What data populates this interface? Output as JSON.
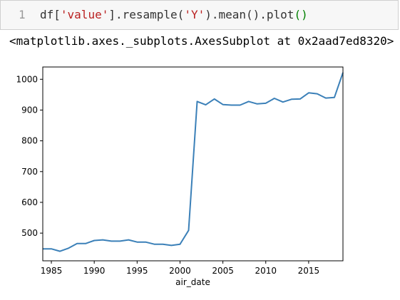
{
  "cell": {
    "line_number": "1",
    "code_parts": [
      "df[",
      "'value'",
      "].resample(",
      "'Y'",
      ").mean().plot",
      "()"
    ],
    "output_text": "<matplotlib.axes._subplots.AxesSubplot at 0x2aad7ed8320>"
  },
  "colors": {
    "line": "#3b80b8",
    "string": "#ba2121",
    "paren": "#008000",
    "cell_bg": "#f7f7f7"
  },
  "chart_data": {
    "type": "line",
    "xlabel": "air_date",
    "ylabel": "",
    "xlim": [
      1984,
      2019
    ],
    "ylim": [
      410,
      1040
    ],
    "xticks": [
      1985,
      1990,
      1995,
      2000,
      2005,
      2010,
      2015
    ],
    "yticks": [
      500,
      600,
      700,
      800,
      900,
      1000
    ],
    "grid": false,
    "series": [
      {
        "x": [
          1984,
          1985,
          1986,
          1987,
          1988,
          1989,
          1990,
          1991,
          1992,
          1993,
          1994,
          1995,
          1996,
          1997,
          1998,
          1999,
          2000,
          2001,
          2002,
          2003,
          2004,
          2005,
          2006,
          2007,
          2008,
          2009,
          2010,
          2011,
          2012,
          2013,
          2014,
          2015,
          2016,
          2017,
          2018,
          2019
        ],
        "values": [
          449,
          449,
          441,
          451,
          466,
          466,
          476,
          478,
          474,
          474,
          478,
          471,
          471,
          464,
          464,
          460,
          464,
          509,
          928,
          917,
          936,
          918,
          916,
          916,
          928,
          920,
          922,
          938,
          926,
          935,
          936,
          956,
          953,
          939,
          941,
          1022
        ]
      }
    ]
  }
}
